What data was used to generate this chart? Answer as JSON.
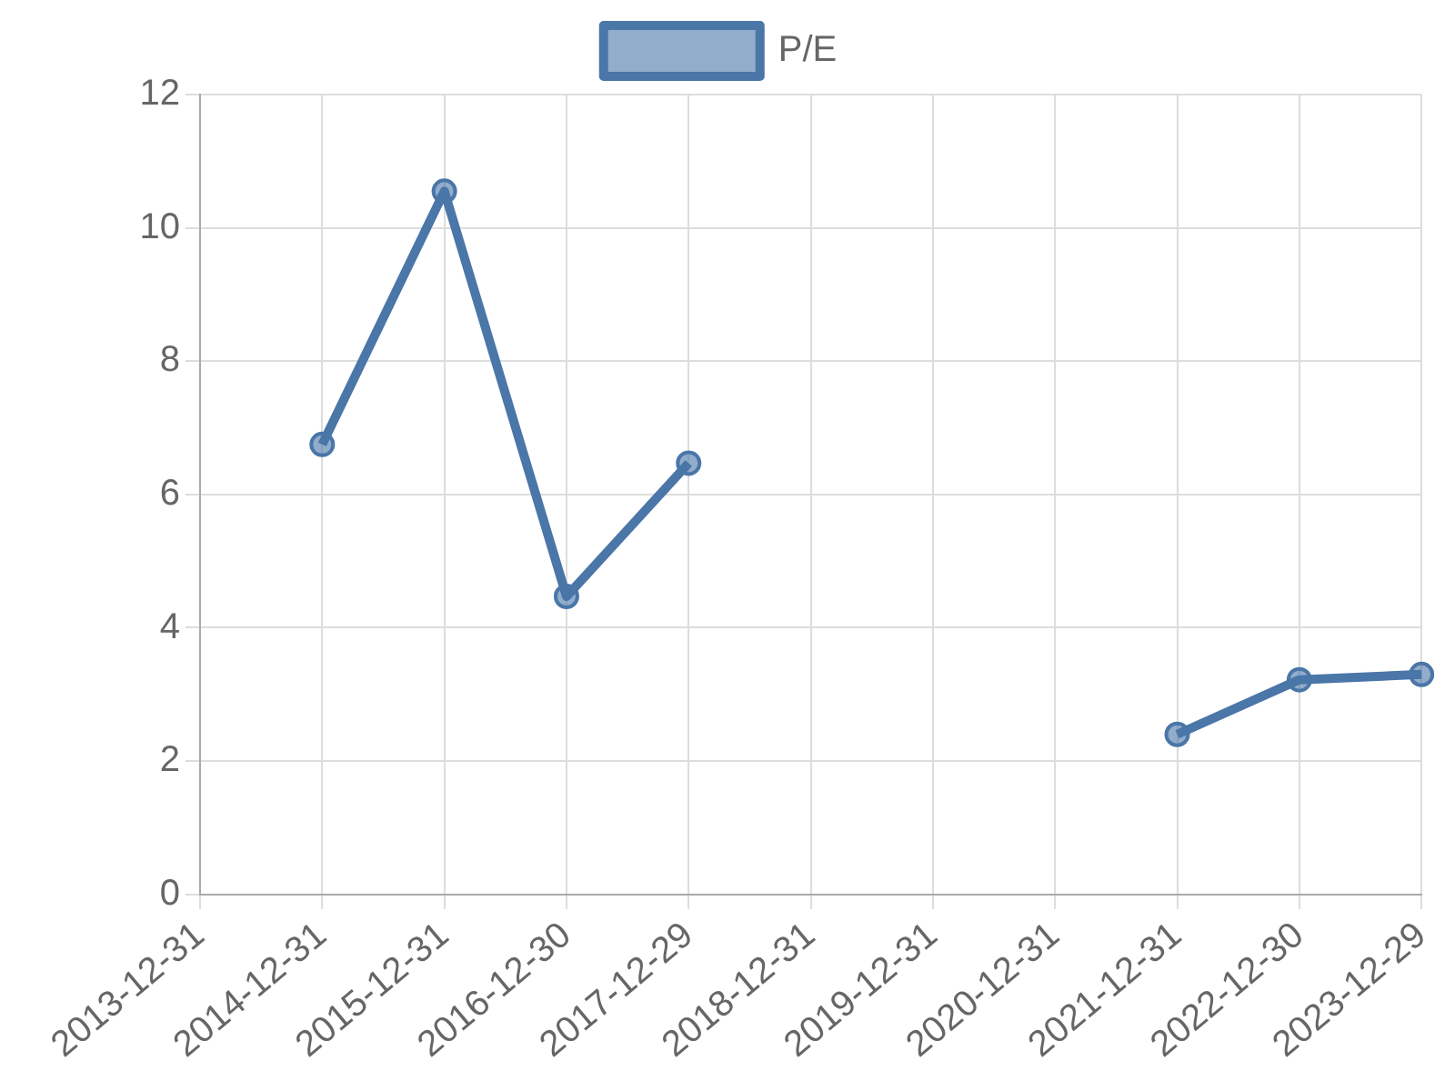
{
  "chart_data": {
    "type": "line",
    "categories": [
      "2013-12-31",
      "2014-12-31",
      "2015-12-31",
      "2016-12-30",
      "2017-12-29",
      "2018-12-31",
      "2019-12-31",
      "2020-12-31",
      "2021-12-31",
      "2022-12-30",
      "2023-12-29"
    ],
    "series": [
      {
        "name": "P/E",
        "color": "#4a76a8",
        "values": [
          null,
          6.75,
          10.55,
          4.47,
          6.47,
          null,
          null,
          null,
          2.4,
          3.22,
          3.3
        ]
      }
    ],
    "ylim": [
      0,
      12
    ],
    "yticks": [
      0,
      2,
      4,
      6,
      8,
      10,
      12
    ],
    "grid": true,
    "legend": "top",
    "marker": "circle",
    "line_style": "solid"
  }
}
